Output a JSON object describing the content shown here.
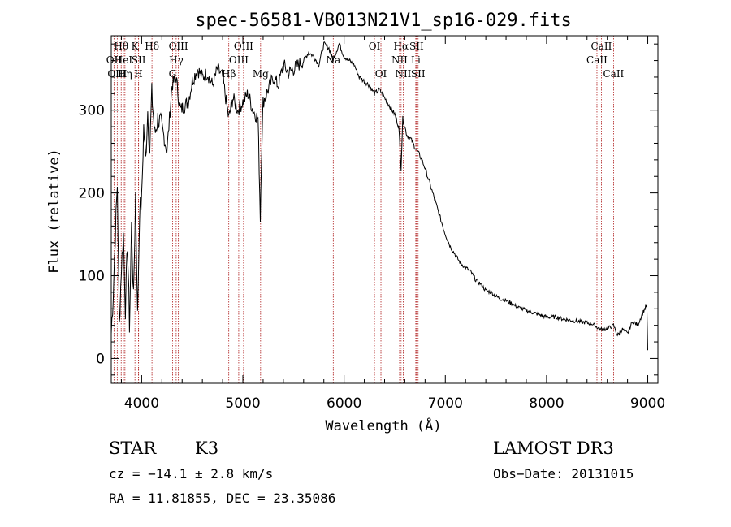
{
  "chart_data": {
    "type": "line",
    "title": "spec-56581-VB013N21V1_sp16-029.fits",
    "xlabel": "Wavelength (Å)",
    "ylabel": "Flux (relative)",
    "xlim": [
      3700,
      9100
    ],
    "ylim": [
      -30,
      390
    ],
    "xticks": [
      4000,
      5000,
      6000,
      7000,
      8000,
      9000
    ],
    "yticks": [
      0,
      100,
      200,
      300
    ],
    "grid": false,
    "series": [
      {
        "name": "flux",
        "x": [
          3700,
          3720,
          3740,
          3760,
          3780,
          3800,
          3820,
          3840,
          3860,
          3880,
          3900,
          3920,
          3940,
          3960,
          3980,
          4000,
          4020,
          4040,
          4060,
          4080,
          4100,
          4130,
          4160,
          4200,
          4250,
          4300,
          4340,
          4380,
          4420,
          4460,
          4500,
          4550,
          4600,
          4650,
          4700,
          4750,
          4800,
          4861,
          4900,
          4950,
          5000,
          5050,
          5100,
          5150,
          5172,
          5183,
          5200,
          5250,
          5300,
          5350,
          5400,
          5450,
          5500,
          5550,
          5600,
          5650,
          5700,
          5750,
          5800,
          5850,
          5890,
          5950,
          6000,
          6050,
          6100,
          6150,
          6200,
          6250,
          6300,
          6350,
          6400,
          6450,
          6500,
          6540,
          6563,
          6580,
          6620,
          6660,
          6700,
          6750,
          6800,
          6850,
          6900,
          6950,
          7000,
          7050,
          7100,
          7150,
          7200,
          7250,
          7300,
          7350,
          7400,
          7450,
          7500,
          7550,
          7600,
          7650,
          7700,
          7750,
          7800,
          7850,
          7900,
          7950,
          8000,
          8050,
          8100,
          8150,
          8200,
          8250,
          8300,
          8350,
          8400,
          8450,
          8498,
          8542,
          8600,
          8662,
          8700,
          8750,
          8800,
          8850,
          8900,
          8950,
          8990,
          9000
        ],
        "y": [
          30,
          80,
          150,
          210,
          40,
          110,
          150,
          60,
          140,
          40,
          160,
          70,
          200,
          50,
          180,
          190,
          280,
          240,
          300,
          250,
          320,
          270,
          290,
          280,
          250,
          330,
          340,
          300,
          305,
          310,
          335,
          350,
          340,
          345,
          330,
          350,
          340,
          290,
          315,
          300,
          310,
          320,
          300,
          290,
          170,
          240,
          310,
          325,
          340,
          330,
          355,
          345,
          350,
          355,
          360,
          370,
          365,
          355,
          380,
          375,
          360,
          380,
          365,
          360,
          355,
          340,
          335,
          330,
          320,
          325,
          315,
          305,
          295,
          280,
          230,
          290,
          270,
          265,
          255,
          245,
          230,
          210,
          190,
          170,
          150,
          135,
          125,
          115,
          110,
          105,
          95,
          90,
          82,
          80,
          75,
          72,
          70,
          67,
          63,
          60,
          58,
          56,
          54,
          52,
          50,
          50,
          50,
          48,
          47,
          46,
          45,
          44,
          43,
          42,
          38,
          35,
          36,
          40,
          28,
          35,
          30,
          45,
          40,
          55,
          65,
          10
        ]
      }
    ],
    "lines": [
      {
        "label": "Hθ",
        "x": 3798,
        "row": 0
      },
      {
        "label": "OII",
        "x": 3727,
        "row": 1
      },
      {
        "label": "OIII",
        "x": 3759,
        "row": 2
      },
      {
        "label": "HeI",
        "x": 3820,
        "row": 1
      },
      {
        "label": "Hη",
        "x": 3835,
        "row": 2
      },
      {
        "label": "K",
        "x": 3934,
        "row": 0
      },
      {
        "label": "SII",
        "x": 3970,
        "row": 1
      },
      {
        "label": "H",
        "x": 3969,
        "row": 2
      },
      {
        "label": "Hδ",
        "x": 4102,
        "row": 0
      },
      {
        "label": "OIII",
        "x": 4363,
        "row": 0
      },
      {
        "label": "Hγ",
        "x": 4341,
        "row": 1
      },
      {
        "label": "G",
        "x": 4305,
        "row": 2
      },
      {
        "label": "Hβ",
        "x": 4861,
        "row": 2
      },
      {
        "label": "OIII",
        "x": 4959,
        "row": 1
      },
      {
        "label": "OIII",
        "x": 5007,
        "row": 0
      },
      {
        "label": "Mg",
        "x": 5175,
        "row": 2
      },
      {
        "label": "Na",
        "x": 5893,
        "row": 1
      },
      {
        "label": "OI",
        "x": 6300,
        "row": 0
      },
      {
        "label": "OI",
        "x": 6364,
        "row": 2
      },
      {
        "label": "Hα",
        "x": 6563,
        "row": 0
      },
      {
        "label": "NII",
        "x": 6548,
        "row": 1
      },
      {
        "label": "NII",
        "x": 6584,
        "row": 2
      },
      {
        "label": "SII",
        "x": 6716,
        "row": 0
      },
      {
        "label": "Li",
        "x": 6708,
        "row": 1
      },
      {
        "label": "SII",
        "x": 6731,
        "row": 2
      },
      {
        "label": "CaII",
        "x": 8542,
        "row": 0
      },
      {
        "label": "CaII",
        "x": 8498,
        "row": 1
      },
      {
        "label": "CaII",
        "x": 8662,
        "row": 2
      }
    ]
  },
  "info": {
    "object_class": "STAR",
    "subclass": "K3",
    "survey": "LAMOST DR3",
    "cz": "cz = −14.1 ± 2.8 km/s",
    "obs_date": "Obs−Date: 20131015",
    "radec": "RA =  11.81855, DEC =  23.35086"
  },
  "colors": {
    "line_marker": "#b02020",
    "spectrum": "#000000",
    "axes": "#000000"
  }
}
